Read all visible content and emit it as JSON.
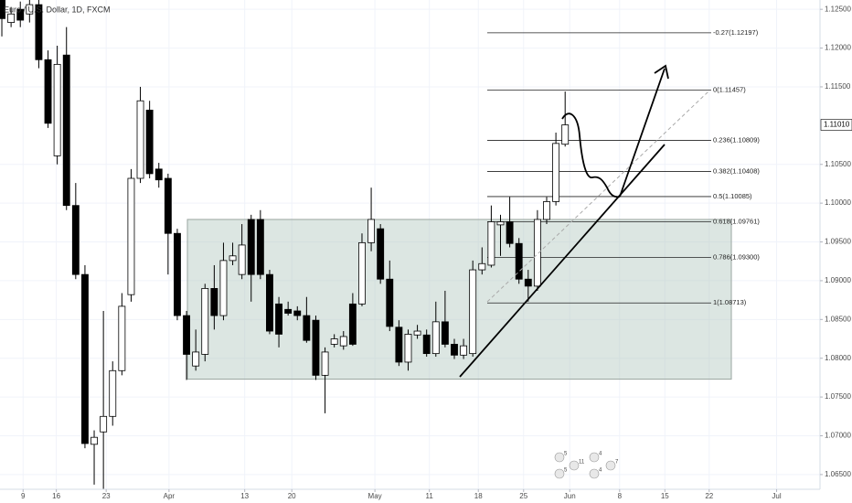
{
  "chart_data": {
    "type": "candlestick",
    "title": "Euro / U.S. Dollar, 1D, FXCM",
    "open": [
      1.1262,
      1.1233,
      1.125,
      1.1244,
      1.1256,
      1.1185,
      1.1061,
      1.1191,
      1.0997,
      1.0908,
      1.0689,
      1.0705,
      1.0725,
      1.0784,
      1.0882,
      1.1032,
      1.112,
      1.1044,
      1.1032,
      1.0961,
      1.0855,
      1.079,
      1.0805,
      1.089,
      1.0855,
      1.0926,
      1.0908,
      1.0979,
      1.0979,
      1.0908,
      1.087,
      1.0863,
      1.0861,
      1.0855,
      1.0849,
      1.0778,
      1.0818,
      1.0816,
      1.087,
      1.087,
      1.0949,
      1.0967,
      1.0902,
      1.084,
      1.0795,
      1.083,
      1.083,
      1.0806,
      1.0847,
      1.0818,
      1.0804,
      1.0806,
      1.0914,
      1.092,
      1.0972,
      1.0976,
      1.0948,
      1.0902,
      1.0893,
      1.0979,
      1.1002,
      1.1076
    ],
    "high": [
      1.1262,
      1.1253,
      1.126,
      1.1262,
      1.1262,
      1.1197,
      1.1203,
      1.1227,
      1.1026,
      1.092,
      1.0707,
      1.0861,
      1.0796,
      1.0884,
      1.1044,
      1.115,
      1.1132,
      1.1052,
      1.1038,
      1.0967,
      1.0861,
      1.0837,
      1.0896,
      1.092,
      1.0949,
      1.0949,
      1.0973,
      1.0985,
      1.0991,
      1.0914,
      1.0879,
      1.0873,
      1.0867,
      1.0879,
      1.0855,
      1.0814,
      1.0831,
      1.0835,
      1.0884,
      1.0961,
      1.102,
      1.0973,
      1.0926,
      1.0849,
      1.0837,
      1.0843,
      1.0837,
      1.0873,
      1.0887,
      1.0825,
      1.0825,
      1.0926,
      1.0943,
      1.0997,
      1.0985,
      1.1008,
      1.0955,
      1.0914,
      1.0991,
      1.1008,
      1.1091,
      1.1144
    ],
    "low": [
      1.1215,
      1.1227,
      1.1227,
      1.1233,
      1.1174,
      1.1097,
      1.105,
      1.0991,
      1.0902,
      1.0684,
      1.0637,
      1.0631,
      1.0713,
      1.0778,
      1.0873,
      1.1026,
      1.1032,
      1.102,
      1.0908,
      1.0849,
      1.0772,
      1.0784,
      1.0796,
      1.0837,
      1.0849,
      1.092,
      1.0902,
      1.0873,
      1.0902,
      1.0831,
      1.0814,
      1.0855,
      1.0849,
      1.082,
      1.0772,
      1.0729,
      1.0814,
      1.0811,
      1.0816,
      1.0867,
      1.0938,
      1.0896,
      1.0835,
      1.079,
      1.0784,
      1.0825,
      1.0802,
      1.0802,
      1.0814,
      1.0799,
      1.0799,
      1.0802,
      1.0908,
      1.0917,
      1.0932,
      1.0943,
      1.0896,
      1.0873,
      1.0887,
      1.0973,
      1.0997,
      1.1073
    ],
    "close": [
      1.1238,
      1.1244,
      1.1236,
      1.1256,
      1.1185,
      1.1103,
      1.1179,
      1.0997,
      1.0908,
      1.069,
      1.0698,
      1.0725,
      1.0784,
      1.0867,
      1.1032,
      1.1132,
      1.1038,
      1.103,
      1.0961,
      1.0855,
      1.0805,
      1.0808,
      1.089,
      1.0855,
      1.0926,
      1.0932,
      1.0946,
      1.0908,
      1.0908,
      1.0835,
      1.0831,
      1.0858,
      1.0855,
      1.0823,
      1.0778,
      1.0808,
      1.0825,
      1.0828,
      1.0818,
      1.0949,
      1.0979,
      1.0902,
      1.0841,
      1.0795,
      1.0831,
      1.0835,
      1.0806,
      1.0847,
      1.0818,
      1.0804,
      1.0816,
      1.0914,
      1.0922,
      1.0976,
      1.0976,
      1.0948,
      1.0902,
      1.0893,
      1.0979,
      1.1002,
      1.1077,
      1.1101
    ],
    "up_color": "#ffffff",
    "down_color": "#000000",
    "ylim": [
      1.0631,
      1.1262
    ],
    "yticks": [
      {
        "value": 1.065,
        "label": "1.06500"
      },
      {
        "value": 1.07,
        "label": "1.07000"
      },
      {
        "value": 1.075,
        "label": "1.07500"
      },
      {
        "value": 1.08,
        "label": "1.08000"
      },
      {
        "value": 1.085,
        "label": "1.08500"
      },
      {
        "value": 1.09,
        "label": "1.09000"
      },
      {
        "value": 1.095,
        "label": "1.09500"
      },
      {
        "value": 1.1,
        "label": "1.10000"
      },
      {
        "value": 1.105,
        "label": "1.10500"
      },
      {
        "value": 1.115,
        "label": "1.11500"
      },
      {
        "value": 1.12,
        "label": "1.12000"
      },
      {
        "value": 1.125,
        "label": "1.12500"
      }
    ],
    "xlim": [
      -0.2,
      88.6
    ],
    "xticks": [
      {
        "value": 2.3,
        "label": "9"
      },
      {
        "value": 5.9,
        "label": "16"
      },
      {
        "value": 11.3,
        "label": "23"
      },
      {
        "value": 18.1,
        "label": "Apr"
      },
      {
        "value": 26.3,
        "label": "13"
      },
      {
        "value": 31.4,
        "label": "20"
      },
      {
        "value": 40.4,
        "label": "May"
      },
      {
        "value": 46.3,
        "label": "11"
      },
      {
        "value": 51.6,
        "label": "18"
      },
      {
        "value": 56.5,
        "label": "25"
      },
      {
        "value": 61.5,
        "label": "Jun"
      },
      {
        "value": 66.9,
        "label": "8"
      },
      {
        "value": 71.8,
        "label": "15"
      },
      {
        "value": 76.6,
        "label": "22"
      },
      {
        "value": 83.9,
        "label": "Jul"
      }
    ],
    "grid": true,
    "last_price": {
      "value": 1.1101,
      "label": "1.11010"
    },
    "range_box": {
      "top": 1.0979,
      "bottom": 1.0773
    },
    "fib_levels": [
      {
        "value": 1.12197,
        "label": "-0.27(1.12197)"
      },
      {
        "value": 1.11457,
        "label": "0(1.11457)"
      },
      {
        "value": 1.10809,
        "label": "0.236(1.10809)"
      },
      {
        "value": 1.10408,
        "label": "0.382(1.10408)"
      },
      {
        "value": 1.10085,
        "label": "0.5(1.10085)"
      },
      {
        "value": 1.09761,
        "label": "0.618(1.09761)"
      },
      {
        "value": 1.093,
        "label": "0.786(1.09300)"
      },
      {
        "value": 1.08713,
        "label": "1(1.08713)"
      }
    ],
    "event_counts": [
      5,
      4,
      5,
      4,
      11,
      7
    ]
  }
}
